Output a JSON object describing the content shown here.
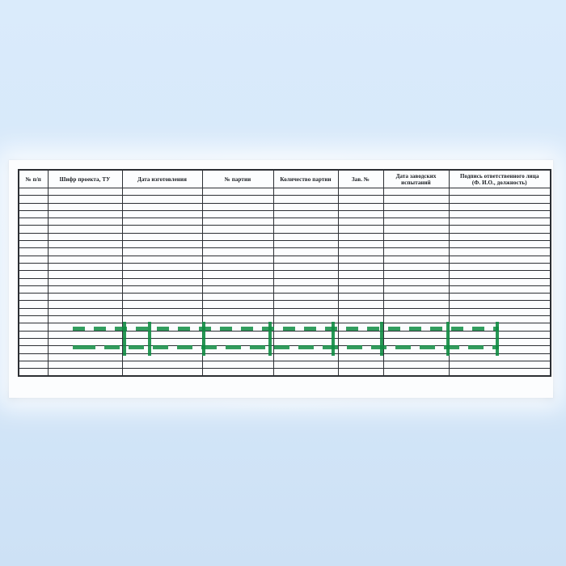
{
  "document": {
    "table": {
      "headers": [
        "№ п/п",
        "Шифр проекта, ТУ",
        "Дата изготовления",
        "№ партии",
        "Количество партии",
        "Зав. №",
        "Дата заводских\nиспытаний",
        "Подпись ответственного лица\n(Ф. И.О., должность)"
      ],
      "empty_body_rows": 25,
      "body_cell_value": ""
    },
    "watermark": {
      "color": "#0f8c42"
    }
  },
  "colors": {
    "background_top": "#daebfb",
    "background_mid": "#d6e8fa",
    "background_bottom": "#cde1f5",
    "paper": "#fcfdfe",
    "table_border": "#2c2f34",
    "header_text": "#15181d"
  }
}
